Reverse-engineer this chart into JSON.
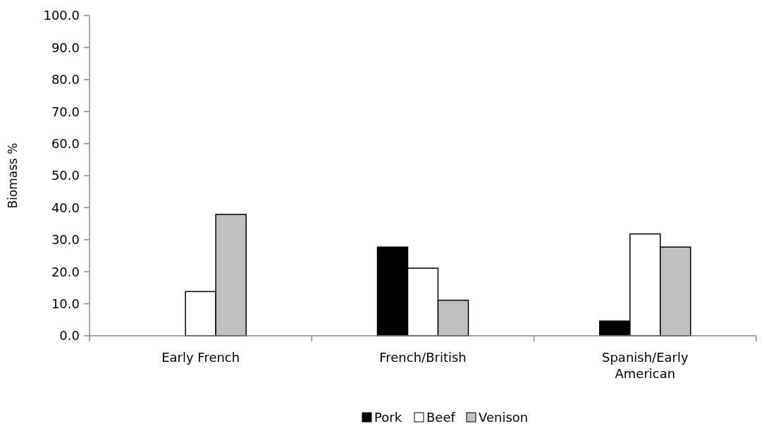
{
  "chart_data": {
    "type": "bar",
    "ylabel": "Biomass %",
    "categories": [
      "Early French",
      "French/British",
      "Spanish/Early American"
    ],
    "series": [
      {
        "name": "Pork",
        "color": "#000000",
        "values": [
          0,
          27.7,
          4.6
        ]
      },
      {
        "name": "Beef",
        "color": "#ffffff",
        "values": [
          13.8,
          21.1,
          31.8
        ]
      },
      {
        "name": "Venison",
        "color": "#c0c0c0",
        "values": [
          37.9,
          11.1,
          27.7
        ]
      }
    ],
    "ylim": [
      0,
      100
    ],
    "yticks": [
      {
        "value": 0,
        "label": "0.0"
      },
      {
        "value": 10,
        "label": "10.0"
      },
      {
        "value": 20,
        "label": "20.0"
      },
      {
        "value": 30,
        "label": "30.0"
      },
      {
        "value": 40,
        "label": "40.0"
      },
      {
        "value": 50,
        "label": "50.0"
      },
      {
        "value": 60,
        "label": "60.0"
      },
      {
        "value": 70,
        "label": "70.0"
      },
      {
        "value": 80,
        "label": "80.0"
      },
      {
        "value": 90,
        "label": "90.0"
      },
      {
        "value": 100,
        "label": "100.0"
      }
    ],
    "grid": false,
    "legend": "bottom"
  }
}
